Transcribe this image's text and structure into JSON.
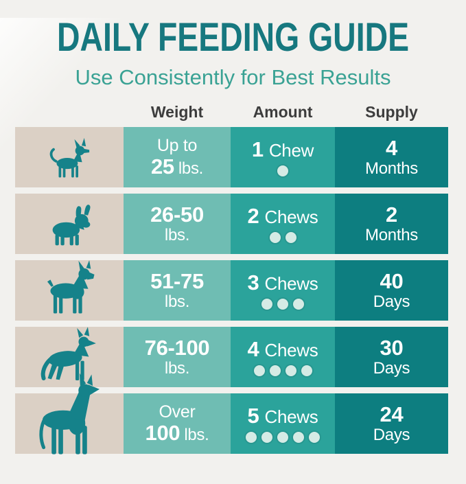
{
  "theme": {
    "page_bg": "#f2f1ee",
    "title_color": "#17787f",
    "subtitle_color": "#3aa294",
    "header_text": "#3d3d3d",
    "dog_cell_bg": "#dbd0c5",
    "weight_cell_bg": "#6fbdb3",
    "amount_cell_bg": "#2ba39b",
    "supply_cell_bg": "#0d7e80",
    "dog_color": "#15828a",
    "dot_color": "#d5ebe5",
    "cell_text": "#ffffff"
  },
  "header": {
    "title": "DAILY FEEDING GUIDE",
    "subtitle": "Use Consistently for Best Results"
  },
  "table": {
    "column_headers": {
      "weight": "Weight",
      "amount": "Amount",
      "supply": "Supply"
    },
    "rows": [
      {
        "icon": "chihuahua-icon",
        "weight_top": "Up to",
        "weight_num": "25",
        "weight_unit": "lbs.",
        "amount_count": "1",
        "amount_label": "Chew",
        "dots": 1,
        "supply_value": "4",
        "supply_unit": "Months"
      },
      {
        "icon": "french-bulldog-icon",
        "weight_top": "26-50",
        "weight_unit": "lbs.",
        "amount_count": "2",
        "amount_label": "Chews",
        "dots": 2,
        "supply_value": "2",
        "supply_unit": "Months"
      },
      {
        "icon": "boxer-icon",
        "weight_top": "51-75",
        "weight_unit": "lbs.",
        "amount_count": "3",
        "amount_label": "Chews",
        "dots": 3,
        "supply_value": "40",
        "supply_unit": "Days"
      },
      {
        "icon": "german-shepherd-icon",
        "weight_top": "76-100",
        "weight_unit": "lbs.",
        "amount_count": "4",
        "amount_label": "Chews",
        "dots": 4,
        "supply_value": "30",
        "supply_unit": "Days"
      },
      {
        "icon": "great-dane-icon",
        "weight_top": "Over",
        "weight_num": "100",
        "weight_unit": "lbs.",
        "amount_count": "5",
        "amount_label": "Chews",
        "dots": 5,
        "supply_value": "24",
        "supply_unit": "Days"
      }
    ]
  },
  "chart_data": {
    "type": "table",
    "title": "DAILY FEEDING GUIDE",
    "subtitle": "Use Consistently for Best Results",
    "columns": [
      "Weight",
      "Amount",
      "Supply"
    ],
    "rows": [
      [
        "Up to 25 lbs.",
        "1 Chew",
        "4 Months"
      ],
      [
        "26-50 lbs.",
        "2 Chews",
        "2 Months"
      ],
      [
        "51-75 lbs.",
        "3 Chews",
        "40 Days"
      ],
      [
        "76-100 lbs.",
        "4 Chews",
        "30 Days"
      ],
      [
        "Over 100 lbs.",
        "5 Chews",
        "24 Days"
      ]
    ]
  }
}
